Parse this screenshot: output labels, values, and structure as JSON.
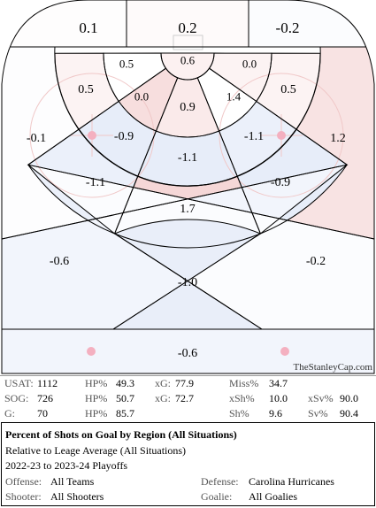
{
  "chart_data": {
    "type": "heatmap",
    "title": "Percent of Shots on Goal by Region (All Situations)",
    "subtitle": "Relative to Leage Average (All Situations)",
    "regions": [
      {
        "id": "top-left-corner",
        "value": 0.1
      },
      {
        "id": "behind-net",
        "value": 0.2
      },
      {
        "id": "top-right-corner",
        "value": -0.2
      },
      {
        "id": "crease",
        "value": 0.6
      },
      {
        "id": "inner-left-upper",
        "value": 0.5
      },
      {
        "id": "inner-right-upper",
        "value": 0.0
      },
      {
        "id": "mid-left-upper",
        "value": 0.5
      },
      {
        "id": "mid-right-upper",
        "value": 0.5
      },
      {
        "id": "inner-left-lower",
        "value": 0.0
      },
      {
        "id": "inner-right-lower",
        "value": 1.4
      },
      {
        "id": "slot-top",
        "value": 0.9
      },
      {
        "id": "left-outer",
        "value": -0.1
      },
      {
        "id": "right-outer",
        "value": 1.2
      },
      {
        "id": "left-circle",
        "value": -0.9
      },
      {
        "id": "right-circle",
        "value": -1.1
      },
      {
        "id": "slot-middle",
        "value": -1.1
      },
      {
        "id": "left-mid",
        "value": -1.1
      },
      {
        "id": "right-mid",
        "value": -0.9
      },
      {
        "id": "high-slot",
        "value": 1.7
      },
      {
        "id": "left-point",
        "value": -0.6
      },
      {
        "id": "right-point",
        "value": -0.2
      },
      {
        "id": "center-point",
        "value": -1.0
      },
      {
        "id": "neutral-zone",
        "value": -0.6
      }
    ],
    "colors": {
      "positive": "#e8a0a0",
      "negative": "#a8bce8",
      "neutral": "#ffffff"
    },
    "watermark": "TheStanleyCap.com"
  },
  "stats": {
    "row1": {
      "usat_label": "USAT:",
      "usat": "1112",
      "hp_label": "HP%",
      "hp": "49.3",
      "xg_label": "xG:",
      "xg": "77.9",
      "miss_label": "Miss%",
      "miss": "34.7"
    },
    "row2": {
      "sog_label": "SOG:",
      "sog": "726",
      "hp_label": "HP%",
      "hp": "50.7",
      "xg_label": "xG:",
      "xg": "72.7",
      "xsh_label": "xSh%",
      "xsh": "10.0",
      "xsv_label": "xSv%",
      "xsv": "90.0"
    },
    "row3": {
      "g_label": "G:",
      "g": "70",
      "hp_label": "HP%",
      "hp": "85.7",
      "sh_label": "Sh%",
      "sh": "9.6",
      "sv_label": "Sv%",
      "sv": "90.4"
    }
  },
  "info": {
    "title": "Percent of Shots on Goal by Region (All Situations)",
    "subtitle": "Relative to Leage Average (All Situations)",
    "seasons": "2022-23 to 2023-24 Playoffs",
    "offense_label": "Offense:",
    "offense": "All Teams",
    "defense_label": "Defense:",
    "defense": "Carolina Hurricanes",
    "shooter_label": "Shooter:",
    "shooter": "All Shooters",
    "goalie_label": "Goalie:",
    "goalie": "All Goalies"
  }
}
